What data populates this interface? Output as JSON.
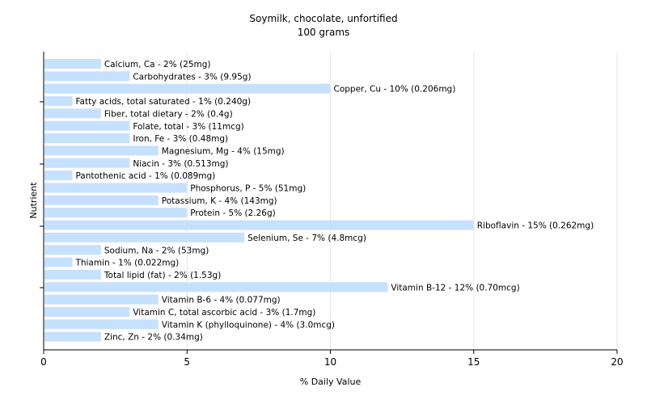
{
  "chart_data": {
    "type": "bar",
    "orientation": "horizontal",
    "title": "Soymilk, chocolate, unfortified",
    "subtitle": "100 grams",
    "xlabel": "% Daily Value",
    "ylabel": "Nutrient",
    "xlim": [
      0,
      20
    ],
    "xticks": [
      0,
      5,
      10,
      15,
      20
    ],
    "grid": true,
    "bar_color": "#c6e0ff",
    "categories": [
      "Calcium, Ca",
      "Carbohydrates",
      "Copper, Cu",
      "Fatty acids, total saturated",
      "Fiber, total dietary",
      "Folate, total",
      "Iron, Fe",
      "Magnesium, Mg",
      "Niacin",
      "Pantothenic acid",
      "Phosphorus, P",
      "Potassium, K",
      "Protein",
      "Riboflavin",
      "Selenium, Se",
      "Sodium, Na",
      "Thiamin",
      "Total lipid (fat)",
      "Vitamin B-12",
      "Vitamin B-6",
      "Vitamin C, total ascorbic acid",
      "Vitamin K (phylloquinone)",
      "Zinc, Zn"
    ],
    "values": [
      2,
      3,
      10,
      1,
      2,
      3,
      3,
      4,
      3,
      1,
      5,
      4,
      5,
      15,
      7,
      2,
      1,
      2,
      12,
      4,
      3,
      4,
      2
    ],
    "data_labels": [
      "Calcium, Ca - 2% (25mg)",
      "Carbohydrates - 3% (9.95g)",
      "Copper, Cu - 10% (0.206mg)",
      "Fatty acids, total saturated - 1% (0.240g)",
      "Fiber, total dietary - 2% (0.4g)",
      "Folate, total - 3% (11mcg)",
      "Iron, Fe - 3% (0.48mg)",
      "Magnesium, Mg - 4% (15mg)",
      "Niacin - 3% (0.513mg)",
      "Pantothenic acid - 1% (0.089mg)",
      "Phosphorus, P - 5% (51mg)",
      "Potassium, K - 4% (143mg)",
      "Protein - 5% (2.26g)",
      "Riboflavin - 15% (0.262mg)",
      "Selenium, Se - 7% (4.8mcg)",
      "Sodium, Na - 2% (53mg)",
      "Thiamin - 1% (0.022mg)",
      "Total lipid (fat) - 2% (1.53g)",
      "Vitamin B-12 - 12% (0.70mcg)",
      "Vitamin B-6 - 4% (0.077mg)",
      "Vitamin C, total ascorbic acid - 3% (1.7mg)",
      "Vitamin K (phylloquinone) - 4% (3.0mcg)",
      "Zinc, Zn - 2% (0.34mg)"
    ]
  }
}
